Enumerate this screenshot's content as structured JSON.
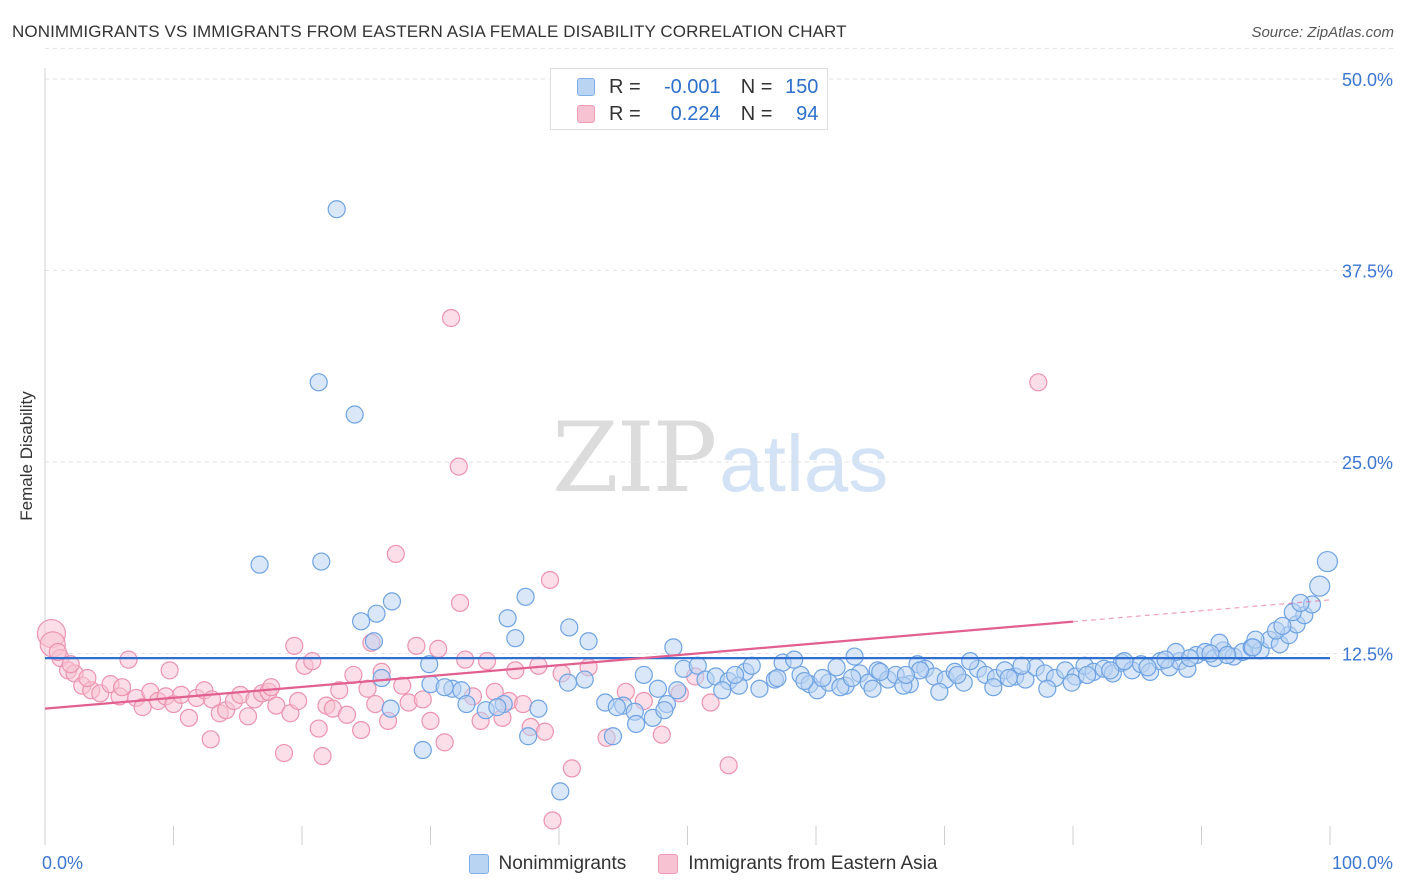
{
  "header": {
    "title": "NONIMMIGRANTS VS IMMIGRANTS FROM EASTERN ASIA FEMALE DISABILITY CORRELATION CHART",
    "source": "Source: ZipAtlas.com"
  },
  "watermark": {
    "zip": "ZIP",
    "atlas": "atlas"
  },
  "legend_top": {
    "rows": [
      {
        "r_label": "R =",
        "r_value": "-0.001",
        "n_label": "N =",
        "n_value": "150"
      },
      {
        "r_label": "R =",
        "r_value": "0.224",
        "n_label": "N =",
        "n_value": "94"
      }
    ]
  },
  "legend_bottom": {
    "items": [
      {
        "label": "Nonimmigrants"
      },
      {
        "label": "Immigrants from Eastern Asia"
      }
    ]
  },
  "colors": {
    "blue_fill": "#b9d3f3",
    "blue_stroke": "#6fa3e3",
    "blue_line": "#2f6fd0",
    "pink_fill": "#f7c3d3",
    "pink_stroke": "#ec93b0",
    "pink_line": "#e2608f",
    "grid": "#e2e2e2",
    "axis_text": "#3b76d1"
  },
  "chart_data": {
    "type": "scatter",
    "title": "NONIMMIGRANTS VS IMMIGRANTS FROM EASTERN ASIA FEMALE DISABILITY CORRELATION CHART",
    "xlabel": "",
    "ylabel": "Female Disability",
    "xlim": [
      0,
      100
    ],
    "ylim": [
      0,
      50
    ],
    "x_tick_labels": [
      "0.0%",
      "100.0%"
    ],
    "y_ticks": [
      12.5,
      25.0,
      37.5,
      50.0
    ],
    "y_tick_labels": [
      "12.5%",
      "25.0%",
      "37.5%",
      "50.0%"
    ],
    "grid": true,
    "legend_position": "top-center",
    "series": [
      {
        "name": "Nonimmigrants",
        "color": "#6fa3e3",
        "r": -0.001,
        "n": 150,
        "trend": {
          "x": [
            0,
            100
          ],
          "y": [
            12.2,
            12.2
          ],
          "dashed_from": null
        },
        "points": [
          [
            22.7,
            41.5
          ],
          [
            21.3,
            30.2
          ],
          [
            24.1,
            28.1
          ],
          [
            16.7,
            18.3
          ],
          [
            21.5,
            18.5
          ],
          [
            27.0,
            15.9
          ],
          [
            25.8,
            15.1
          ],
          [
            24.6,
            14.6
          ],
          [
            25.6,
            13.3
          ],
          [
            36.0,
            14.8
          ],
          [
            37.4,
            16.2
          ],
          [
            40.8,
            14.2
          ],
          [
            36.6,
            13.5
          ],
          [
            42.3,
            13.3
          ],
          [
            29.9,
            11.8
          ],
          [
            26.2,
            10.9
          ],
          [
            30.0,
            10.5
          ],
          [
            31.7,
            10.2
          ],
          [
            32.4,
            10.1
          ],
          [
            31.1,
            10.3
          ],
          [
            26.9,
            8.9
          ],
          [
            34.3,
            8.8
          ],
          [
            35.7,
            9.2
          ],
          [
            35.2,
            9.0
          ],
          [
            38.4,
            8.9
          ],
          [
            37.6,
            7.1
          ],
          [
            32.8,
            9.2
          ],
          [
            29.4,
            6.2
          ],
          [
            40.7,
            10.6
          ],
          [
            45.0,
            9.1
          ],
          [
            42.0,
            10.8
          ],
          [
            43.6,
            9.3
          ],
          [
            44.5,
            9.0
          ],
          [
            45.9,
            8.7
          ],
          [
            44.2,
            7.1
          ],
          [
            46.0,
            7.9
          ],
          [
            47.3,
            8.3
          ],
          [
            48.4,
            9.2
          ],
          [
            47.7,
            10.2
          ],
          [
            49.2,
            10.1
          ],
          [
            48.2,
            8.8
          ],
          [
            40.1,
            3.5
          ],
          [
            46.6,
            11.1
          ],
          [
            48.9,
            12.9
          ],
          [
            49.7,
            11.5
          ],
          [
            50.8,
            11.7
          ],
          [
            51.4,
            10.8
          ],
          [
            52.2,
            11.0
          ],
          [
            53.2,
            10.7
          ],
          [
            54.5,
            11.3
          ],
          [
            54.0,
            10.4
          ],
          [
            55.6,
            10.2
          ],
          [
            56.8,
            10.8
          ],
          [
            57.4,
            11.9
          ],
          [
            58.8,
            11.1
          ],
          [
            59.5,
            10.5
          ],
          [
            60.1,
            10.1
          ],
          [
            61.0,
            10.6
          ],
          [
            62.3,
            10.4
          ],
          [
            61.6,
            11.6
          ],
          [
            63.4,
            11.2
          ],
          [
            64.1,
            10.6
          ],
          [
            64.8,
            11.4
          ],
          [
            65.6,
            10.8
          ],
          [
            66.2,
            11.1
          ],
          [
            67.3,
            10.5
          ],
          [
            67.9,
            11.8
          ],
          [
            68.5,
            11.5
          ],
          [
            69.2,
            11.0
          ],
          [
            70.1,
            10.8
          ],
          [
            70.8,
            11.3
          ],
          [
            71.5,
            10.6
          ],
          [
            72.6,
            11.5
          ],
          [
            73.2,
            11.1
          ],
          [
            74.0,
            10.9
          ],
          [
            74.7,
            11.4
          ],
          [
            75.5,
            11.0
          ],
          [
            76.3,
            10.8
          ],
          [
            77.1,
            11.6
          ],
          [
            77.8,
            11.2
          ],
          [
            78.6,
            10.9
          ],
          [
            79.4,
            11.4
          ],
          [
            80.2,
            11.0
          ],
          [
            80.9,
            11.7
          ],
          [
            81.6,
            11.3
          ],
          [
            82.4,
            11.5
          ],
          [
            83.1,
            11.2
          ],
          [
            83.8,
            11.9
          ],
          [
            84.6,
            11.4
          ],
          [
            85.3,
            11.8
          ],
          [
            86.0,
            11.3
          ],
          [
            86.8,
            12.0
          ],
          [
            87.5,
            11.6
          ],
          [
            88.3,
            12.0
          ],
          [
            88.9,
            11.5
          ],
          [
            89.6,
            12.4
          ],
          [
            90.3,
            12.6
          ],
          [
            91.0,
            12.2
          ],
          [
            91.7,
            12.7
          ],
          [
            92.5,
            12.3
          ],
          [
            93.2,
            12.6
          ],
          [
            93.9,
            12.9
          ],
          [
            94.6,
            12.7
          ],
          [
            95.3,
            13.4
          ],
          [
            96.1,
            13.1
          ],
          [
            96.8,
            13.7
          ],
          [
            97.4,
            14.4
          ],
          [
            98.0,
            15.0
          ],
          [
            98.6,
            15.7
          ],
          [
            99.2,
            16.9
          ],
          [
            99.8,
            18.5
          ],
          [
            58.3,
            12.1
          ],
          [
            63.0,
            12.3
          ],
          [
            68.1,
            11.4
          ],
          [
            72.0,
            12.0
          ],
          [
            76.0,
            11.7
          ],
          [
            84.0,
            12.0
          ],
          [
            88.0,
            12.6
          ],
          [
            91.4,
            13.2
          ],
          [
            94.2,
            13.4
          ],
          [
            95.8,
            14.0
          ],
          [
            97.1,
            15.2
          ],
          [
            61.9,
            10.3
          ],
          [
            64.4,
            10.2
          ],
          [
            66.8,
            10.4
          ],
          [
            69.6,
            10.0
          ],
          [
            73.8,
            10.3
          ],
          [
            78.0,
            10.2
          ],
          [
            55.0,
            11.7
          ],
          [
            52.7,
            10.1
          ],
          [
            53.7,
            11.1
          ],
          [
            57.0,
            10.9
          ],
          [
            59.1,
            10.7
          ],
          [
            60.5,
            10.9
          ],
          [
            62.8,
            10.9
          ],
          [
            65.0,
            11.3
          ],
          [
            67.0,
            11.1
          ],
          [
            71.0,
            11.1
          ],
          [
            75.0,
            10.9
          ],
          [
            79.9,
            10.6
          ],
          [
            81.1,
            11.1
          ],
          [
            82.9,
            11.4
          ],
          [
            85.8,
            11.6
          ],
          [
            87.2,
            12.1
          ],
          [
            89.1,
            12.2
          ],
          [
            90.7,
            12.5
          ],
          [
            92.0,
            12.4
          ],
          [
            94.0,
            12.9
          ],
          [
            96.3,
            14.3
          ],
          [
            97.7,
            15.8
          ]
        ]
      },
      {
        "name": "Immigrants from Eastern Asia",
        "color": "#ec93b0",
        "r": 0.224,
        "n": 94,
        "trend": {
          "x": [
            0,
            100
          ],
          "y": [
            8.9,
            16.0
          ],
          "dashed_from": 80
        },
        "points": [
          [
            0.5,
            13.8
          ],
          [
            0.6,
            13.1
          ],
          [
            1.2,
            12.2
          ],
          [
            1.8,
            11.4
          ],
          [
            2.3,
            11.2
          ],
          [
            2.9,
            10.4
          ],
          [
            3.6,
            10.1
          ],
          [
            4.3,
            9.9
          ],
          [
            5.1,
            10.5
          ],
          [
            5.8,
            9.7
          ],
          [
            6.5,
            12.1
          ],
          [
            7.1,
            9.6
          ],
          [
            7.6,
            9.0
          ],
          [
            8.2,
            10.0
          ],
          [
            8.8,
            9.4
          ],
          [
            9.4,
            9.7
          ],
          [
            10.0,
            9.2
          ],
          [
            10.6,
            9.8
          ],
          [
            11.2,
            8.3
          ],
          [
            11.8,
            9.6
          ],
          [
            12.4,
            10.1
          ],
          [
            13.0,
            9.5
          ],
          [
            13.6,
            8.6
          ],
          [
            14.1,
            8.8
          ],
          [
            14.7,
            9.4
          ],
          [
            15.2,
            9.8
          ],
          [
            15.8,
            8.4
          ],
          [
            16.3,
            9.5
          ],
          [
            16.9,
            9.9
          ],
          [
            17.4,
            10.0
          ],
          [
            18.0,
            9.1
          ],
          [
            18.6,
            6.0
          ],
          [
            19.1,
            8.6
          ],
          [
            19.7,
            9.4
          ],
          [
            20.2,
            11.7
          ],
          [
            20.8,
            12.0
          ],
          [
            21.3,
            7.6
          ],
          [
            21.9,
            9.1
          ],
          [
            22.4,
            8.9
          ],
          [
            22.9,
            10.1
          ],
          [
            23.5,
            8.5
          ],
          [
            24.0,
            11.1
          ],
          [
            24.6,
            7.5
          ],
          [
            25.1,
            10.2
          ],
          [
            25.7,
            9.2
          ],
          [
            26.2,
            11.3
          ],
          [
            26.7,
            8.1
          ],
          [
            27.3,
            19.0
          ],
          [
            27.8,
            10.4
          ],
          [
            28.3,
            9.3
          ],
          [
            28.9,
            13.0
          ],
          [
            29.4,
            9.5
          ],
          [
            30.0,
            8.1
          ],
          [
            30.6,
            12.8
          ],
          [
            31.1,
            6.7
          ],
          [
            31.6,
            34.4
          ],
          [
            32.2,
            24.7
          ],
          [
            32.3,
            15.8
          ],
          [
            32.7,
            12.1
          ],
          [
            33.3,
            9.7
          ],
          [
            33.9,
            8.1
          ],
          [
            34.4,
            12.0
          ],
          [
            35.0,
            10.0
          ],
          [
            35.6,
            8.3
          ],
          [
            36.1,
            9.4
          ],
          [
            36.6,
            11.4
          ],
          [
            37.2,
            9.2
          ],
          [
            37.8,
            7.7
          ],
          [
            38.4,
            11.7
          ],
          [
            38.9,
            7.4
          ],
          [
            39.5,
            1.6
          ],
          [
            40.2,
            11.2
          ],
          [
            41.0,
            5.0
          ],
          [
            42.3,
            11.6
          ],
          [
            43.7,
            7.0
          ],
          [
            45.2,
            10.0
          ],
          [
            46.6,
            9.4
          ],
          [
            48.0,
            7.2
          ],
          [
            49.4,
            9.9
          ],
          [
            50.6,
            11.0
          ],
          [
            51.8,
            9.3
          ],
          [
            53.2,
            5.2
          ],
          [
            77.3,
            30.2
          ],
          [
            39.3,
            17.3
          ],
          [
            25.4,
            13.2
          ],
          [
            21.6,
            5.8
          ],
          [
            19.4,
            13.0
          ],
          [
            17.6,
            10.3
          ],
          [
            12.9,
            6.9
          ],
          [
            9.7,
            11.4
          ],
          [
            6.0,
            10.3
          ],
          [
            3.3,
            10.9
          ],
          [
            2.0,
            11.8
          ],
          [
            1.0,
            12.6
          ]
        ]
      }
    ]
  }
}
